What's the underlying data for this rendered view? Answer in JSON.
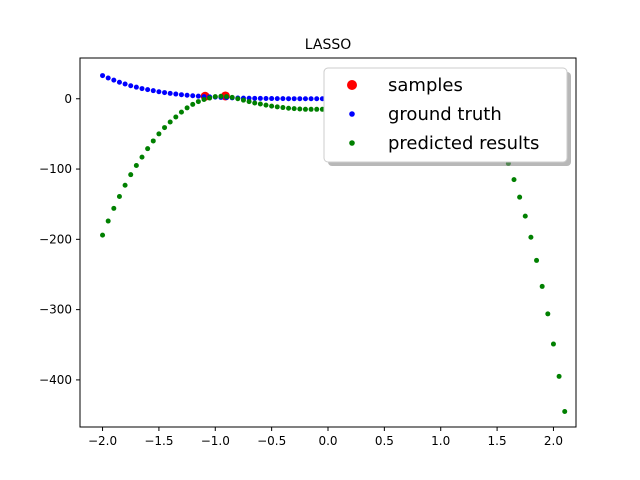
{
  "chart_data": {
    "type": "scatter",
    "title": "LASSO",
    "xlabel": "",
    "ylabel": "",
    "xlim": [
      -2.2,
      2.2
    ],
    "ylim": [
      -467,
      58
    ],
    "x_ticks": [
      -2.0,
      -1.5,
      -1.0,
      -0.5,
      0.0,
      0.5,
      1.0,
      1.5,
      2.0
    ],
    "x_tick_labels": [
      "−2.0",
      "−1.5",
      "−1.0",
      "−0.5",
      "0.0",
      "0.5",
      "1.0",
      "1.5",
      "2.0"
    ],
    "y_ticks": [
      0,
      -100,
      -200,
      -300,
      -400
    ],
    "y_tick_labels": [
      "0",
      "−100",
      "−200",
      "−300",
      "−400"
    ],
    "grid": false,
    "legend_position": "top-right",
    "series": [
      {
        "name": "samples",
        "color": "#ff0000",
        "marker_size": "large",
        "points": [
          [
            -1.09,
            3.5
          ],
          [
            -0.91,
            4.0
          ]
        ]
      },
      {
        "name": "ground truth",
        "color": "#0000ff",
        "marker_size": "small",
        "points": [
          [
            -2.0,
            33
          ],
          [
            -1.95,
            29.5
          ],
          [
            -1.9,
            26.5
          ],
          [
            -1.85,
            23.5
          ],
          [
            -1.8,
            21
          ],
          [
            -1.75,
            18.5
          ],
          [
            -1.7,
            16.5
          ],
          [
            -1.65,
            14.5
          ],
          [
            -1.6,
            13
          ],
          [
            -1.55,
            11.5
          ],
          [
            -1.5,
            10
          ],
          [
            -1.45,
            8.8
          ],
          [
            -1.4,
            7.7
          ],
          [
            -1.35,
            6.7
          ],
          [
            -1.3,
            5.8
          ],
          [
            -1.25,
            5
          ],
          [
            -1.2,
            4.3
          ],
          [
            -1.15,
            3.7
          ],
          [
            -1.1,
            3.1
          ],
          [
            -1.05,
            2.7
          ],
          [
            -1.0,
            2.3
          ],
          [
            -0.95,
            1.9
          ],
          [
            -0.9,
            1.6
          ],
          [
            -0.85,
            1.3
          ],
          [
            -0.8,
            1.1
          ],
          [
            -0.75,
            0.9
          ],
          [
            -0.7,
            0.7
          ],
          [
            -0.65,
            0.6
          ],
          [
            -0.6,
            0.5
          ],
          [
            -0.55,
            0.4
          ],
          [
            -0.5,
            0.3
          ],
          [
            -0.45,
            0.2
          ],
          [
            -0.4,
            0.2
          ],
          [
            -0.35,
            0.1
          ],
          [
            -0.3,
            0.1
          ],
          [
            -0.25,
            0.1
          ],
          [
            -0.2,
            0.0
          ],
          [
            -0.15,
            0.0
          ],
          [
            -0.1,
            0.0
          ],
          [
            -0.05,
            0.0
          ],
          [
            0.0,
            0.0
          ]
        ]
      },
      {
        "name": "predicted results",
        "color": "#008000",
        "marker_size": "small",
        "points": [
          [
            -2.0,
            -194
          ],
          [
            -1.95,
            -174
          ],
          [
            -1.9,
            -156
          ],
          [
            -1.85,
            -139
          ],
          [
            -1.8,
            -123
          ],
          [
            -1.75,
            -108
          ],
          [
            -1.7,
            -95
          ],
          [
            -1.65,
            -83
          ],
          [
            -1.6,
            -71
          ],
          [
            -1.55,
            -60
          ],
          [
            -1.5,
            -50
          ],
          [
            -1.45,
            -41
          ],
          [
            -1.4,
            -33
          ],
          [
            -1.35,
            -26
          ],
          [
            -1.3,
            -19
          ],
          [
            -1.25,
            -13
          ],
          [
            -1.2,
            -8
          ],
          [
            -1.15,
            -4
          ],
          [
            -1.1,
            -1
          ],
          [
            -1.05,
            1
          ],
          [
            -1.0,
            3
          ],
          [
            -0.95,
            3.5
          ],
          [
            -0.9,
            3
          ],
          [
            -0.85,
            2
          ],
          [
            -0.8,
            0
          ],
          [
            -0.75,
            -2
          ],
          [
            -0.7,
            -4
          ],
          [
            -0.65,
            -6
          ],
          [
            -0.6,
            -7.5
          ],
          [
            -0.55,
            -9
          ],
          [
            -0.5,
            -10.5
          ],
          [
            -0.45,
            -11.5
          ],
          [
            -0.4,
            -12.5
          ],
          [
            -0.35,
            -13.5
          ],
          [
            -0.3,
            -14
          ],
          [
            -0.25,
            -14.5
          ],
          [
            -0.2,
            -15
          ],
          [
            -0.15,
            -15
          ],
          [
            -0.1,
            -15
          ],
          [
            -0.05,
            -15
          ],
          [
            0.0,
            -15
          ],
          [
            1.6,
            -92
          ],
          [
            1.65,
            -115
          ],
          [
            1.7,
            -140
          ],
          [
            1.75,
            -167
          ],
          [
            1.8,
            -197
          ],
          [
            1.85,
            -230
          ],
          [
            1.9,
            -267
          ],
          [
            1.95,
            -306
          ],
          [
            2.0,
            -349
          ],
          [
            2.05,
            -395
          ],
          [
            2.1,
            -445
          ]
        ]
      }
    ]
  }
}
